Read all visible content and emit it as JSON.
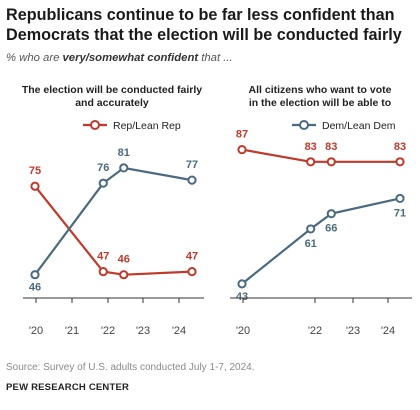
{
  "title": "Republicans continue to be far less confident than Democrats that the election will be conducted fairly",
  "subtitle": {
    "prefix": "% who are ",
    "emphasis": "very/somewhat confident",
    "suffix": " that ..."
  },
  "colors": {
    "rep": "#c0392b",
    "dem": "#4a6a80",
    "axis": "#333333",
    "tick_text": "#444444"
  },
  "chart_data": [
    {
      "type": "line",
      "title": "The election will be conducted fairly and accurately",
      "x_ticks": [
        "'20",
        "'21",
        "'22",
        "'23",
        "'24"
      ],
      "series": [
        {
          "name": "Rep/Lean Rep",
          "color": "#c0392b",
          "x": [
            2020.0,
            2022.0,
            2022.6,
            2024.6
          ],
          "values": [
            75,
            47,
            46,
            47
          ]
        },
        {
          "name": "Dem/Lean Dem",
          "color": "#4a6a80",
          "x": [
            2020.0,
            2022.0,
            2022.6,
            2024.6
          ],
          "values": [
            46,
            76,
            81,
            77
          ]
        }
      ],
      "ylim": [
        40,
        90
      ],
      "grid": false,
      "legend": "top-center"
    },
    {
      "type": "line",
      "title": "All citizens who want to vote in the election will be able to",
      "x_ticks": [
        "'20",
        "'22",
        "'23",
        "'24"
      ],
      "series": [
        {
          "name": "Rep/Lean Rep",
          "color": "#c0392b",
          "x": [
            2020.0,
            2022.0,
            2022.6,
            2024.6
          ],
          "values": [
            87,
            83,
            83,
            83
          ]
        },
        {
          "name": "Dem/Lean Dem",
          "color": "#4a6a80",
          "x": [
            2020.0,
            2022.0,
            2022.6,
            2024.6
          ],
          "values": [
            43,
            61,
            66,
            71
          ]
        }
      ],
      "ylim": [
        40,
        90
      ],
      "grid": false,
      "legend": "top-center"
    }
  ],
  "source": "Source: Survey of U.S. adults conducted July 1-7, 2024.",
  "org": "PEW RESEARCH CENTER"
}
